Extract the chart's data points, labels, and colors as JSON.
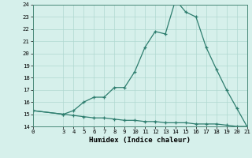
{
  "xlabel": "Humidex (Indice chaleur)",
  "x_values": [
    0,
    3,
    4,
    5,
    6,
    7,
    8,
    9,
    10,
    11,
    12,
    13,
    14,
    15,
    16,
    17,
    18,
    19,
    20,
    21
  ],
  "line1_y": [
    15.3,
    15.0,
    15.3,
    16.0,
    16.4,
    16.4,
    17.2,
    17.2,
    18.5,
    20.5,
    21.8,
    21.6,
    24.4,
    23.4,
    23.0,
    20.5,
    18.7,
    17.0,
    15.5,
    14.0
  ],
  "line2_y": [
    15.3,
    15.0,
    14.9,
    14.8,
    14.7,
    14.7,
    14.6,
    14.5,
    14.5,
    14.4,
    14.4,
    14.3,
    14.3,
    14.3,
    14.2,
    14.2,
    14.2,
    14.1,
    14.0,
    14.0
  ],
  "line_color": "#2d7d6e",
  "bg_color": "#d6f0eb",
  "grid_color": "#b0d8d0",
  "xlim": [
    0,
    21
  ],
  "ylim": [
    14,
    24
  ],
  "yticks": [
    14,
    15,
    16,
    17,
    18,
    19,
    20,
    21,
    22,
    23,
    24
  ],
  "xticks": [
    0,
    3,
    4,
    5,
    6,
    7,
    8,
    9,
    10,
    11,
    12,
    13,
    14,
    15,
    16,
    17,
    18,
    19,
    20,
    21
  ],
  "marker": "+"
}
